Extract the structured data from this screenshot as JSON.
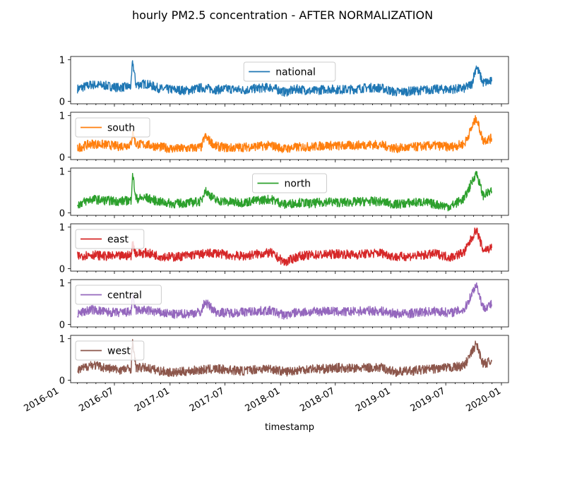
{
  "chart_data": {
    "type": "line",
    "title": "hourly PM2.5 concentration - AFTER NORMALIZATION",
    "xlabel": "timestamp",
    "x_range": [
      "2016-03-01",
      "2019-11-30"
    ],
    "x_ticks": [
      "2016-01",
      "2016-07",
      "2017-01",
      "2017-07",
      "2018-01",
      "2018-07",
      "2019-01",
      "2019-07",
      "2020-01"
    ],
    "ylim": [
      0,
      1
    ],
    "y_ticks": [
      "0",
      "1"
    ],
    "grid": false,
    "panels": [
      {
        "name": "national",
        "color": "#1f77b4",
        "legend_loc": "upper-center",
        "x": [
          "2016-03-01",
          "2016-04-15",
          "2016-06-01",
          "2016-07-15",
          "2016-08-25",
          "2016-08-30",
          "2016-09-10",
          "2016-10-15",
          "2016-11-30",
          "2017-01-15",
          "2017-03-01",
          "2017-04-15",
          "2017-06-01",
          "2017-07-15",
          "2017-09-01",
          "2017-10-15",
          "2017-11-30",
          "2018-01-15",
          "2018-03-01",
          "2018-04-15",
          "2018-06-01",
          "2018-07-15",
          "2018-09-01",
          "2018-10-15",
          "2018-11-30",
          "2019-01-15",
          "2019-03-01",
          "2019-04-15",
          "2019-06-01",
          "2019-07-15",
          "2019-09-01",
          "2019-09-25",
          "2019-10-10",
          "2019-11-01",
          "2019-11-30"
        ],
        "y": [
          0.3,
          0.4,
          0.38,
          0.33,
          0.36,
          0.98,
          0.4,
          0.42,
          0.3,
          0.28,
          0.26,
          0.33,
          0.28,
          0.3,
          0.27,
          0.31,
          0.34,
          0.22,
          0.3,
          0.24,
          0.3,
          0.28,
          0.29,
          0.33,
          0.32,
          0.22,
          0.24,
          0.27,
          0.29,
          0.29,
          0.31,
          0.42,
          0.85,
          0.45,
          0.48
        ]
      },
      {
        "name": "south",
        "color": "#ff7f0e",
        "legend_loc": "upper-left",
        "x": [
          "2016-03-01",
          "2016-04-15",
          "2016-06-01",
          "2016-07-15",
          "2016-08-25",
          "2016-08-30",
          "2016-09-10",
          "2016-10-15",
          "2016-11-30",
          "2017-01-15",
          "2017-03-01",
          "2017-04-15",
          "2017-04-25",
          "2017-06-01",
          "2017-07-15",
          "2017-09-01",
          "2017-10-15",
          "2017-11-30",
          "2018-01-15",
          "2018-03-01",
          "2018-04-15",
          "2018-06-01",
          "2018-07-15",
          "2018-09-01",
          "2018-10-15",
          "2018-11-30",
          "2019-01-15",
          "2019-03-01",
          "2019-04-15",
          "2019-06-01",
          "2019-07-15",
          "2019-09-01",
          "2019-10-10",
          "2019-11-01",
          "2019-11-30"
        ],
        "y": [
          0.22,
          0.32,
          0.3,
          0.26,
          0.3,
          0.62,
          0.31,
          0.3,
          0.24,
          0.2,
          0.21,
          0.24,
          0.5,
          0.26,
          0.22,
          0.24,
          0.26,
          0.28,
          0.2,
          0.24,
          0.25,
          0.28,
          0.27,
          0.28,
          0.3,
          0.29,
          0.21,
          0.23,
          0.26,
          0.28,
          0.24,
          0.32,
          0.95,
          0.4,
          0.45
        ]
      },
      {
        "name": "north",
        "color": "#2ca02c",
        "legend_loc": "upper-center",
        "x": [
          "2016-03-01",
          "2016-04-15",
          "2016-06-01",
          "2016-07-15",
          "2016-08-25",
          "2016-08-30",
          "2016-09-10",
          "2016-10-15",
          "2016-11-30",
          "2017-01-15",
          "2017-03-01",
          "2017-04-15",
          "2017-04-25",
          "2017-06-01",
          "2017-07-15",
          "2017-09-01",
          "2017-10-15",
          "2017-11-30",
          "2018-01-15",
          "2018-03-01",
          "2018-04-15",
          "2018-06-01",
          "2018-07-15",
          "2018-09-01",
          "2018-10-15",
          "2018-11-30",
          "2019-01-15",
          "2019-03-01",
          "2019-04-15",
          "2019-06-01",
          "2019-07-15",
          "2019-09-01",
          "2019-10-10",
          "2019-11-01",
          "2019-11-30"
        ],
        "y": [
          0.2,
          0.33,
          0.3,
          0.28,
          0.3,
          0.95,
          0.34,
          0.36,
          0.26,
          0.22,
          0.24,
          0.28,
          0.55,
          0.3,
          0.26,
          0.25,
          0.3,
          0.33,
          0.2,
          0.25,
          0.22,
          0.27,
          0.25,
          0.26,
          0.28,
          0.27,
          0.2,
          0.24,
          0.26,
          0.2,
          0.15,
          0.35,
          0.98,
          0.42,
          0.52
        ]
      },
      {
        "name": "east",
        "color": "#d62728",
        "legend_loc": "upper-left",
        "x": [
          "2016-03-01",
          "2016-04-15",
          "2016-06-01",
          "2016-07-15",
          "2016-08-25",
          "2016-08-30",
          "2016-09-10",
          "2016-10-15",
          "2016-11-30",
          "2017-01-15",
          "2017-03-01",
          "2017-04-15",
          "2017-06-01",
          "2017-07-15",
          "2017-09-01",
          "2017-10-15",
          "2017-11-30",
          "2018-01-15",
          "2018-03-01",
          "2018-04-15",
          "2018-06-01",
          "2018-07-15",
          "2018-09-01",
          "2018-10-15",
          "2018-11-30",
          "2019-01-15",
          "2019-03-01",
          "2019-04-15",
          "2019-06-01",
          "2019-07-15",
          "2019-09-01",
          "2019-10-10",
          "2019-11-01",
          "2019-11-30"
        ],
        "y": [
          0.3,
          0.34,
          0.3,
          0.3,
          0.32,
          0.62,
          0.36,
          0.38,
          0.3,
          0.28,
          0.32,
          0.35,
          0.38,
          0.32,
          0.3,
          0.35,
          0.38,
          0.15,
          0.3,
          0.33,
          0.34,
          0.36,
          0.33,
          0.36,
          0.38,
          0.28,
          0.3,
          0.32,
          0.36,
          0.27,
          0.4,
          0.95,
          0.45,
          0.5
        ]
      },
      {
        "name": "central",
        "color": "#9467bd",
        "legend_loc": "upper-left",
        "x": [
          "2016-03-01",
          "2016-04-15",
          "2016-06-01",
          "2016-07-15",
          "2016-08-25",
          "2016-08-30",
          "2016-09-10",
          "2016-10-15",
          "2016-11-30",
          "2017-01-15",
          "2017-03-01",
          "2017-04-15",
          "2017-04-25",
          "2017-06-01",
          "2017-07-15",
          "2017-09-01",
          "2017-10-15",
          "2017-11-30",
          "2018-01-15",
          "2018-03-01",
          "2018-04-15",
          "2018-06-01",
          "2018-07-15",
          "2018-09-01",
          "2018-10-15",
          "2018-11-30",
          "2019-01-15",
          "2019-03-01",
          "2019-04-15",
          "2019-06-01",
          "2019-07-15",
          "2019-09-01",
          "2019-10-10",
          "2019-11-01",
          "2019-11-30"
        ],
        "y": [
          0.25,
          0.36,
          0.3,
          0.28,
          0.3,
          0.65,
          0.34,
          0.34,
          0.28,
          0.24,
          0.26,
          0.3,
          0.55,
          0.3,
          0.28,
          0.3,
          0.32,
          0.33,
          0.22,
          0.3,
          0.3,
          0.33,
          0.3,
          0.31,
          0.33,
          0.32,
          0.26,
          0.26,
          0.3,
          0.32,
          0.28,
          0.36,
          0.98,
          0.4,
          0.48
        ]
      },
      {
        "name": "west",
        "color": "#8c564b",
        "legend_loc": "upper-left",
        "x": [
          "2016-03-01",
          "2016-04-15",
          "2016-06-01",
          "2016-07-15",
          "2016-08-25",
          "2016-08-30",
          "2016-09-10",
          "2016-10-15",
          "2016-11-30",
          "2017-01-15",
          "2017-03-01",
          "2017-04-15",
          "2017-06-01",
          "2017-07-15",
          "2017-09-01",
          "2017-10-15",
          "2017-11-30",
          "2018-01-15",
          "2018-03-01",
          "2018-04-15",
          "2018-06-01",
          "2018-07-15",
          "2018-09-01",
          "2018-10-15",
          "2018-11-30",
          "2019-01-15",
          "2019-03-01",
          "2019-04-15",
          "2019-06-01",
          "2019-07-15",
          "2019-09-01",
          "2019-10-10",
          "2019-11-01",
          "2019-11-30"
        ],
        "y": [
          0.22,
          0.38,
          0.3,
          0.25,
          0.28,
          0.98,
          0.3,
          0.3,
          0.22,
          0.18,
          0.22,
          0.25,
          0.27,
          0.25,
          0.22,
          0.27,
          0.28,
          0.2,
          0.25,
          0.28,
          0.27,
          0.3,
          0.28,
          0.3,
          0.3,
          0.2,
          0.22,
          0.25,
          0.28,
          0.3,
          0.35,
          0.88,
          0.4,
          0.45
        ]
      }
    ]
  }
}
